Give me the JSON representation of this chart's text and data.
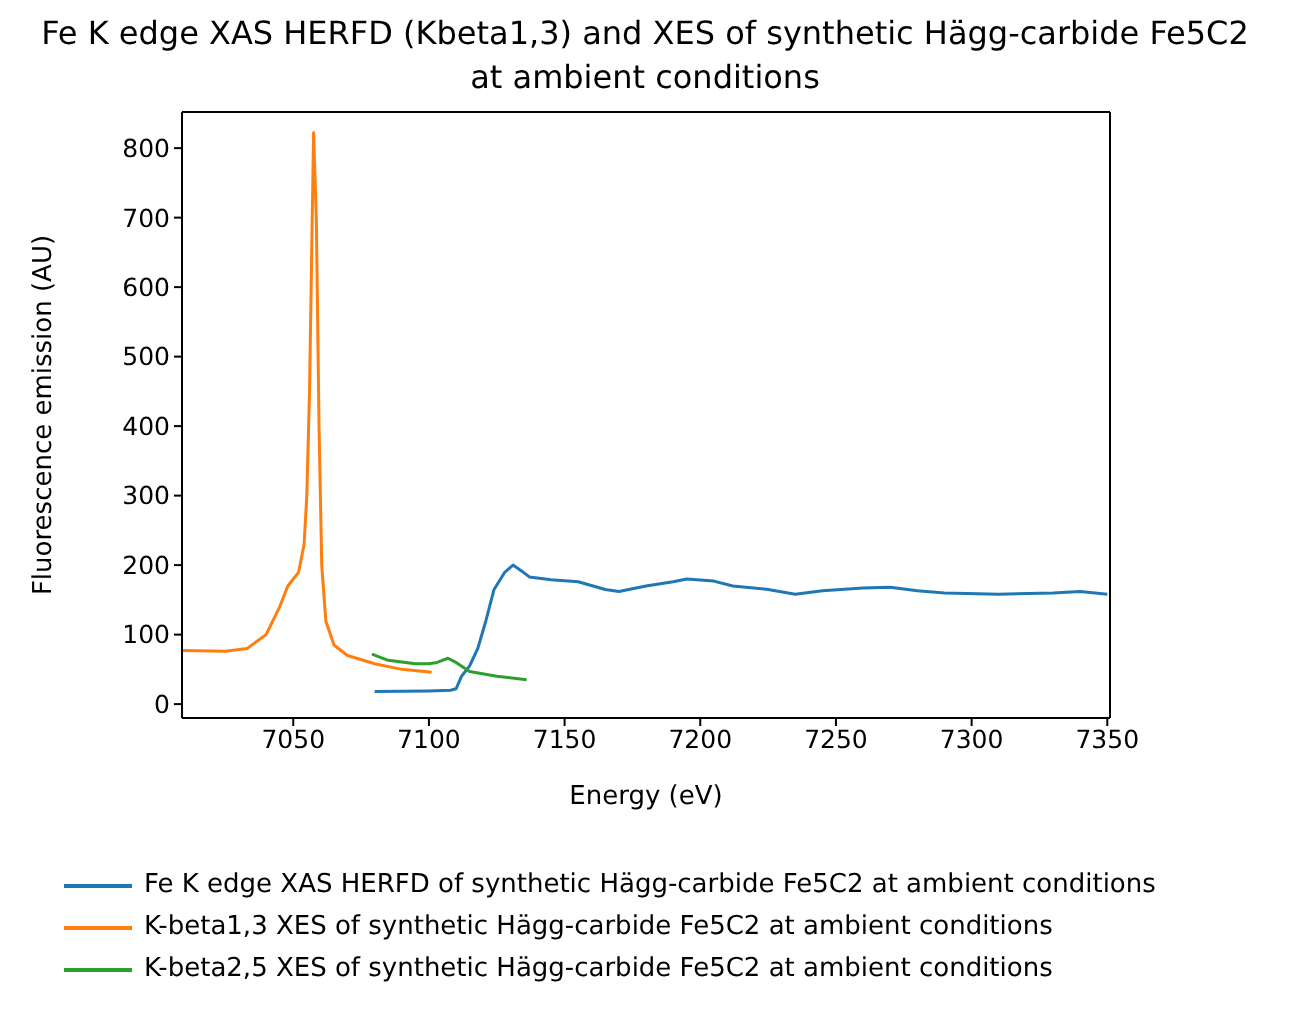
{
  "chart_data": {
    "type": "line",
    "title": "Fe K edge XAS HERFD (Kbeta1,3) and XES of synthetic Hägg-carbide Fe5C2\nat ambient conditions",
    "xlabel": "Energy (eV)",
    "ylabel": "Fluorescence emission (AU)",
    "xlim": [
      7009,
      7351
    ],
    "xticks": [
      7050,
      7100,
      7150,
      7200,
      7250,
      7300,
      7350
    ],
    "ylim": [
      -20,
      852
    ],
    "yticks": [
      0,
      100,
      200,
      300,
      400,
      500,
      600,
      700,
      800
    ],
    "grid": false,
    "legend": "bottom",
    "marker": "none",
    "line_style": "solid",
    "series": [
      {
        "name": "Fe K edge XAS HERFD of synthetic Hägg-carbide Fe5C2 at ambient conditions",
        "color": "#1f77b4",
        "x": [
          7080,
          7100,
          7108,
          7110,
          7112,
          7115,
          7118,
          7121,
          7124,
          7128,
          7131,
          7134,
          7137,
          7145,
          7155,
          7165,
          7170,
          7180,
          7190,
          7195,
          7205,
          7212,
          7225,
          7235,
          7245,
          7260,
          7270,
          7280,
          7290,
          7310,
          7330,
          7340,
          7350
        ],
        "values": [
          18,
          19,
          20,
          22,
          40,
          55,
          80,
          120,
          165,
          190,
          200,
          192,
          183,
          179,
          176,
          165,
          162,
          170,
          176,
          180,
          177,
          170,
          165,
          158,
          163,
          167,
          168,
          163,
          160,
          158,
          160,
          162,
          158
        ]
      },
      {
        "name": "K-beta1,3 XES of synthetic Hägg-carbide Fe5C2 at ambient conditions",
        "color": "#ff7f0e",
        "x": [
          7009,
          7025,
          7033,
          7040,
          7045,
          7048,
          7052,
          7054,
          7055,
          7056,
          7057,
          7057.5,
          7058.5,
          7059.5,
          7060.5,
          7062,
          7065,
          7070,
          7080,
          7090,
          7101
        ],
        "values": [
          77,
          76,
          80,
          100,
          140,
          170,
          190,
          230,
          300,
          450,
          700,
          822,
          700,
          400,
          200,
          120,
          85,
          70,
          58,
          50,
          46
        ]
      },
      {
        "name": "K-beta2,5 XES of synthetic Hägg-carbide Fe5C2 at ambient conditions",
        "color": "#2ca02c",
        "x": [
          7079,
          7085,
          7095,
          7100,
          7103,
          7107,
          7110,
          7115,
          7125,
          7136
        ],
        "values": [
          72,
          63,
          58,
          58,
          60,
          66,
          60,
          47,
          40,
          35
        ]
      }
    ]
  }
}
